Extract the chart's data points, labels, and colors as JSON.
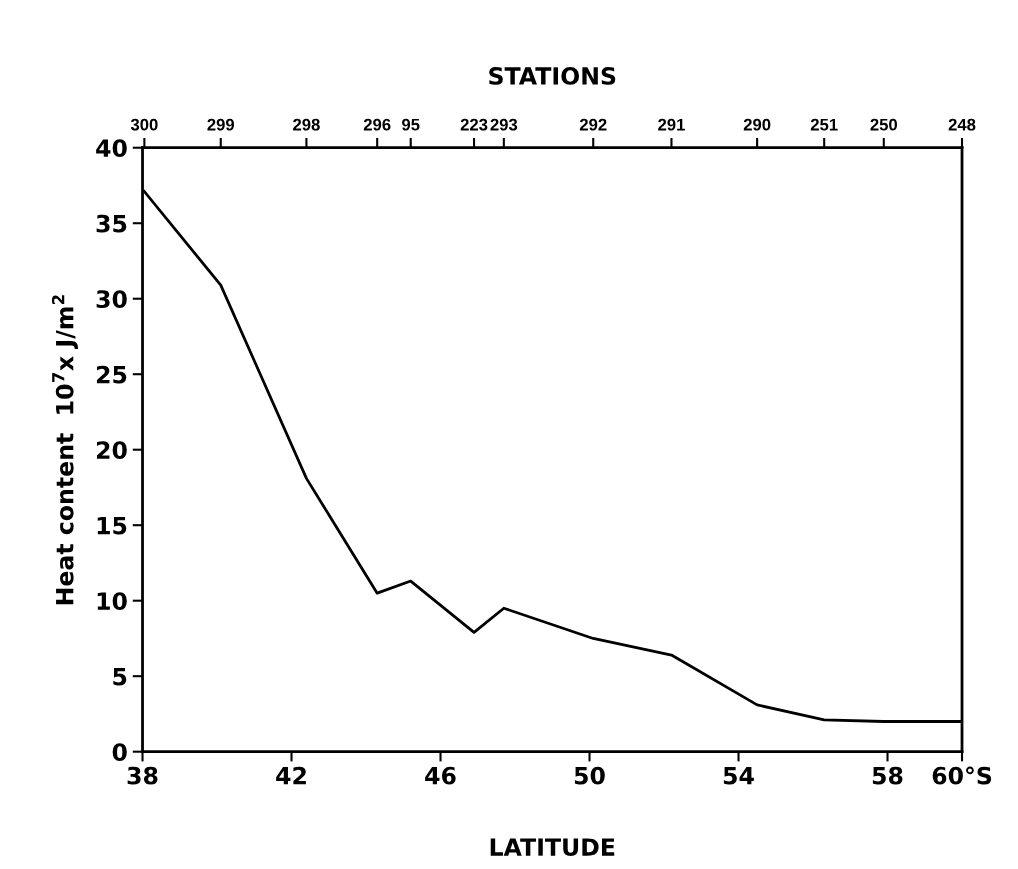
{
  "chart_data": {
    "type": "line",
    "xlabel": "LATITUDE",
    "x2label": "STATIONS",
    "ylabel": "Heat content  10$^{7}$x J/m$^{2}$",
    "x": [
      38.05,
      40.1,
      42.4,
      44.3,
      45.2,
      46.9,
      47.7,
      50.1,
      52.2,
      54.5,
      56.3,
      57.9,
      60
    ],
    "series": [
      {
        "color": "#000000",
        "values": [
          37.1,
          30.9,
          18.1,
          10.5,
          11.3,
          7.9,
          9.5,
          7.5,
          6.4,
          3.1,
          2.1,
          2.0,
          2.0
        ]
      }
    ],
    "xlim": [
      38,
      60
    ],
    "xticks": [
      38,
      42,
      46,
      50,
      54,
      58,
      {
        "value": 60,
        "label": "60°S"
      }
    ],
    "annotations": [
      {
        "text": "300",
        "x": 38.05
      },
      {
        "text": "299",
        "x": 40.1
      },
      {
        "text": "298",
        "x": 42.4
      },
      {
        "text": "296",
        "x": 44.3
      },
      {
        "text": "95",
        "x": 45.2
      },
      {
        "text": "223",
        "x": 46.9
      },
      {
        "text": "293",
        "x": 47.7
      },
      {
        "text": "292",
        "x": 50.1
      },
      {
        "text": "291",
        "x": 52.2
      },
      {
        "text": "290",
        "x": 54.5
      },
      {
        "text": "251",
        "x": 56.3
      },
      {
        "text": "250",
        "x": 57.9
      },
      {
        "text": "248",
        "x": 60
      }
    ],
    "ylim": [
      0,
      40
    ],
    "yticks": [
      0,
      5,
      10,
      15,
      20,
      25,
      30,
      35,
      40
    ],
    "grid": false,
    "legend": false,
    "marker": "none",
    "line_style": "solid"
  }
}
